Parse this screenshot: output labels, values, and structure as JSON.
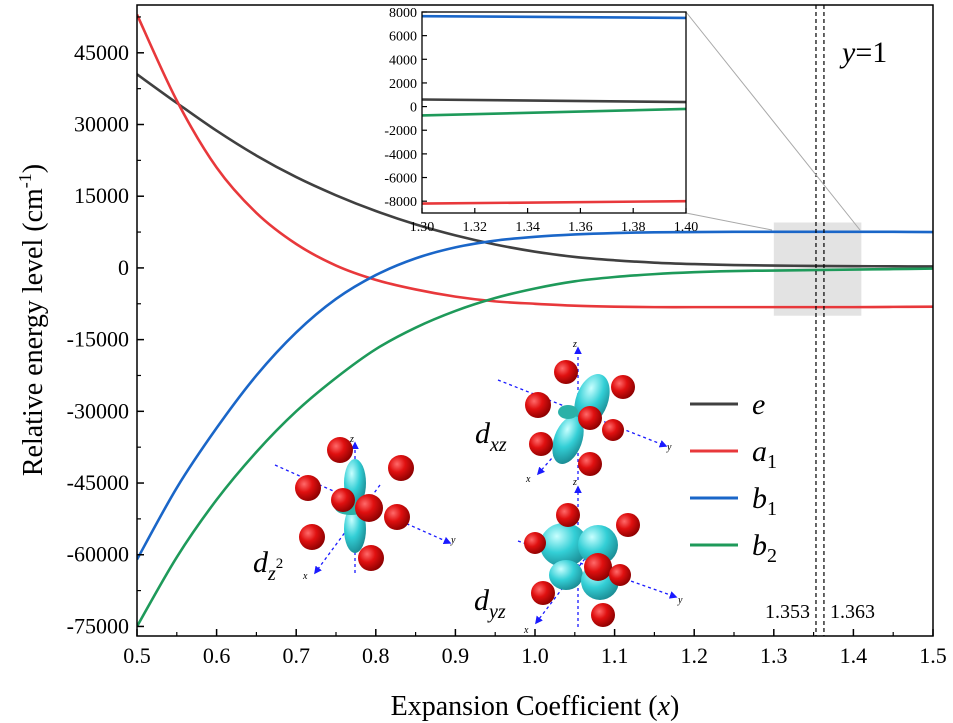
{
  "chart_data": {
    "type": "line",
    "xlabel": "Expansion Coefficient (x)",
    "ylabel": "Relative energy level (cm-1)",
    "xlim": [
      0.5,
      1.5
    ],
    "ylim": [
      -77000,
      55000
    ],
    "x_ticks": [
      "0.5",
      "0.6",
      "0.7",
      "0.8",
      "0.9",
      "1.0",
      "1.1",
      "1.2",
      "1.3",
      "1.4",
      "1.5"
    ],
    "y_ticks": [
      "45000",
      "30000",
      "15000",
      "0",
      "-15000",
      "-30000",
      "-45000",
      "-60000",
      "-75000"
    ],
    "x": [
      0.5,
      0.55,
      0.6,
      0.65,
      0.7,
      0.75,
      0.8,
      0.85,
      0.9,
      0.95,
      1.0,
      1.05,
      1.1,
      1.15,
      1.2,
      1.25,
      1.3,
      1.35,
      1.4,
      1.45,
      1.5
    ],
    "series": [
      {
        "name": "e",
        "color": "#404040",
        "values": [
          40500,
          34500,
          28700,
          23500,
          19000,
          15200,
          11900,
          9100,
          6800,
          4900,
          3400,
          2300,
          1600,
          1100,
          800,
          600,
          500,
          420,
          370,
          330,
          300
        ]
      },
      {
        "name": "a1",
        "color": "#e8383b",
        "values": [
          53000,
          35000,
          21000,
          11500,
          5000,
          500,
          -2500,
          -4500,
          -6000,
          -7000,
          -7500,
          -7900,
          -8100,
          -8200,
          -8200,
          -8200,
          -8200,
          -8200,
          -8200,
          -8150,
          -8100
        ]
      },
      {
        "name": "b1",
        "color": "#1a66c8",
        "values": [
          -61000,
          -46000,
          -33500,
          -22500,
          -13500,
          -6500,
          -1500,
          2000,
          4300,
          5700,
          6500,
          7000,
          7300,
          7450,
          7500,
          7550,
          7550,
          7550,
          7550,
          7550,
          7500
        ]
      },
      {
        "name": "b2",
        "color": "#1e9a5a",
        "values": [
          -75000,
          -60500,
          -48500,
          -38500,
          -30000,
          -23000,
          -17000,
          -12500,
          -9000,
          -6300,
          -4300,
          -2800,
          -1900,
          -1300,
          -900,
          -650,
          -550,
          -450,
          -350,
          -250,
          -150
        ]
      }
    ],
    "annotations": {
      "y_label": "y",
      "y_value": "=1",
      "v_lines": [
        "1.353",
        "1.363"
      ],
      "v_line_x": [
        1.353,
        1.363
      ],
      "highlight_box": {
        "x": [
          1.3,
          1.41
        ],
        "y": [
          -10000,
          9500
        ]
      }
    },
    "inset": {
      "xlim": [
        1.3,
        1.4
      ],
      "ylim": [
        -9000,
        8000
      ],
      "x_ticks": [
        "1.30",
        "1.32",
        "1.34",
        "1.36",
        "1.38",
        "1.40"
      ],
      "y_ticks": [
        "8000",
        "6000",
        "4000",
        "2000",
        "0",
        "-2000",
        "-4000",
        "-6000",
        "-8000"
      ],
      "x": [
        1.3,
        1.4
      ],
      "series": [
        {
          "name": "e",
          "color": "#404040",
          "values": [
            600,
            380
          ]
        },
        {
          "name": "a1",
          "color": "#e8383b",
          "values": [
            -8200,
            -8000
          ]
        },
        {
          "name": "b1",
          "color": "#1a66c8",
          "values": [
            7650,
            7500
          ]
        },
        {
          "name": "b2",
          "color": "#1e9a5a",
          "values": [
            -750,
            -200
          ]
        }
      ]
    },
    "legend": {
      "position": "right-middle",
      "entries": [
        {
          "base": "e",
          "sub": ""
        },
        {
          "base": "a",
          "sub": "1"
        },
        {
          "base": "b",
          "sub": "1"
        },
        {
          "base": "b",
          "sub": "2"
        }
      ]
    },
    "orbitals": [
      {
        "base": "d",
        "sub": "z",
        "sup": "2"
      },
      {
        "base": "d",
        "sub": "xz",
        "sup": ""
      },
      {
        "base": "d",
        "sub": "yz",
        "sup": ""
      }
    ],
    "orbital_axes": [
      "x",
      "y",
      "z"
    ]
  }
}
